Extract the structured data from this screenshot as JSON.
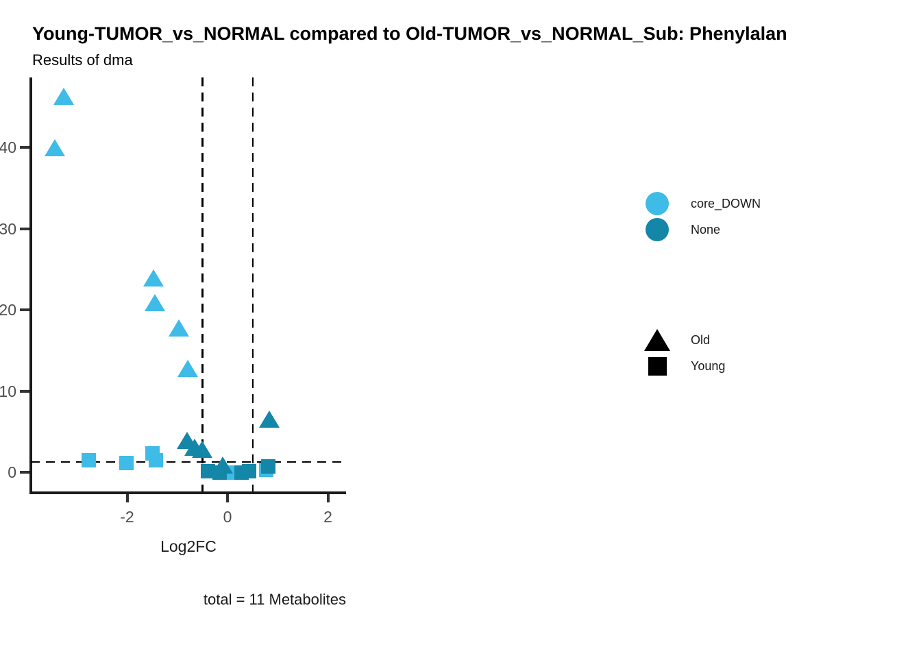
{
  "title": "Young-TUMOR_vs_NORMAL compared to Old-TUMOR_vs_NORMAL_Sub: Phenylalan",
  "subtitle": "Results of dma",
  "caption": "total = 11 Metabolites",
  "colors": {
    "core_DOWN": "#3EBBE6",
    "None": "#1486A8",
    "shape_legend": "#000000",
    "axis_line": "#1a1a1a",
    "tick_text": "#4d4d4d"
  },
  "legend": {
    "color_items": [
      {
        "label": "core_DOWN",
        "color_key": "core_DOWN"
      },
      {
        "label": "None",
        "color_key": "None"
      }
    ],
    "shape_items": [
      {
        "label": "Old",
        "shape": "triangle"
      },
      {
        "label": "Young",
        "shape": "square"
      }
    ]
  },
  "chart_data": {
    "type": "scatter",
    "title": "Young-TUMOR_vs_NORMAL compared to Old-TUMOR_vs_NORMAL_Sub: Phenylalan",
    "subtitle": "Results of dma",
    "xlabel": "Log2FC",
    "ylabel": "",
    "xlim": [
      -3.9,
      2.4
    ],
    "ylim": [
      -2.5,
      48.5
    ],
    "x_ticks": [
      -2,
      0,
      2
    ],
    "y_ticks": [
      0,
      10,
      20,
      30,
      40
    ],
    "grid": false,
    "legend_position": "right",
    "threshold_lines": {
      "hline_y": 1.3,
      "vlines_x": [
        -0.5,
        0.5
      ],
      "style": "dashed"
    },
    "points": [
      {
        "x": -2.76,
        "y": 1.45,
        "shape": "square",
        "age": "Young",
        "sig": "core_DOWN"
      },
      {
        "x": -2.01,
        "y": 1.18,
        "shape": "square",
        "age": "Young",
        "sig": "core_DOWN"
      },
      {
        "x": -1.5,
        "y": 2.35,
        "shape": "square",
        "age": "Young",
        "sig": "core_DOWN"
      },
      {
        "x": -1.42,
        "y": 1.45,
        "shape": "square",
        "age": "Young",
        "sig": "core_DOWN"
      },
      {
        "x": 0.01,
        "y": 0.0,
        "shape": "square",
        "age": "Young",
        "sig": "core_DOWN"
      },
      {
        "x": 0.77,
        "y": 0.3,
        "shape": "square",
        "age": "Young",
        "sig": "core_DOWN"
      },
      {
        "x": -3.26,
        "y": 46.3,
        "shape": "triangle",
        "age": "Old",
        "sig": "core_DOWN"
      },
      {
        "x": -3.44,
        "y": 40.0,
        "shape": "triangle",
        "age": "Old",
        "sig": "core_DOWN"
      },
      {
        "x": -1.47,
        "y": 23.9,
        "shape": "triangle",
        "age": "Old",
        "sig": "core_DOWN"
      },
      {
        "x": -1.45,
        "y": 20.9,
        "shape": "triangle",
        "age": "Old",
        "sig": "core_DOWN"
      },
      {
        "x": -0.97,
        "y": 17.8,
        "shape": "triangle",
        "age": "Old",
        "sig": "core_DOWN"
      },
      {
        "x": -0.79,
        "y": 12.8,
        "shape": "triangle",
        "age": "Old",
        "sig": "core_DOWN"
      },
      {
        "x": -0.81,
        "y": 3.9,
        "shape": "triangle",
        "age": "Old",
        "sig": "None"
      },
      {
        "x": -0.66,
        "y": 3.1,
        "shape": "triangle",
        "age": "Old",
        "sig": "None"
      },
      {
        "x": -0.5,
        "y": 2.8,
        "shape": "triangle",
        "age": "Old",
        "sig": "None"
      },
      {
        "x": -0.09,
        "y": 0.85,
        "shape": "triangle",
        "age": "Old",
        "sig": "None"
      },
      {
        "x": 0.83,
        "y": 6.5,
        "shape": "triangle",
        "age": "Old",
        "sig": "None"
      },
      {
        "x": -0.39,
        "y": 0.1,
        "shape": "square",
        "age": "Young",
        "sig": "None"
      },
      {
        "x": -0.16,
        "y": 0.0,
        "shape": "square",
        "age": "Young",
        "sig": "None"
      },
      {
        "x": 0.28,
        "y": 0.0,
        "shape": "square",
        "age": "Young",
        "sig": "None"
      },
      {
        "x": 0.43,
        "y": 0.1,
        "shape": "square",
        "age": "Young",
        "sig": "None"
      },
      {
        "x": 0.81,
        "y": 0.75,
        "shape": "square",
        "age": "Young",
        "sig": "None"
      }
    ]
  }
}
